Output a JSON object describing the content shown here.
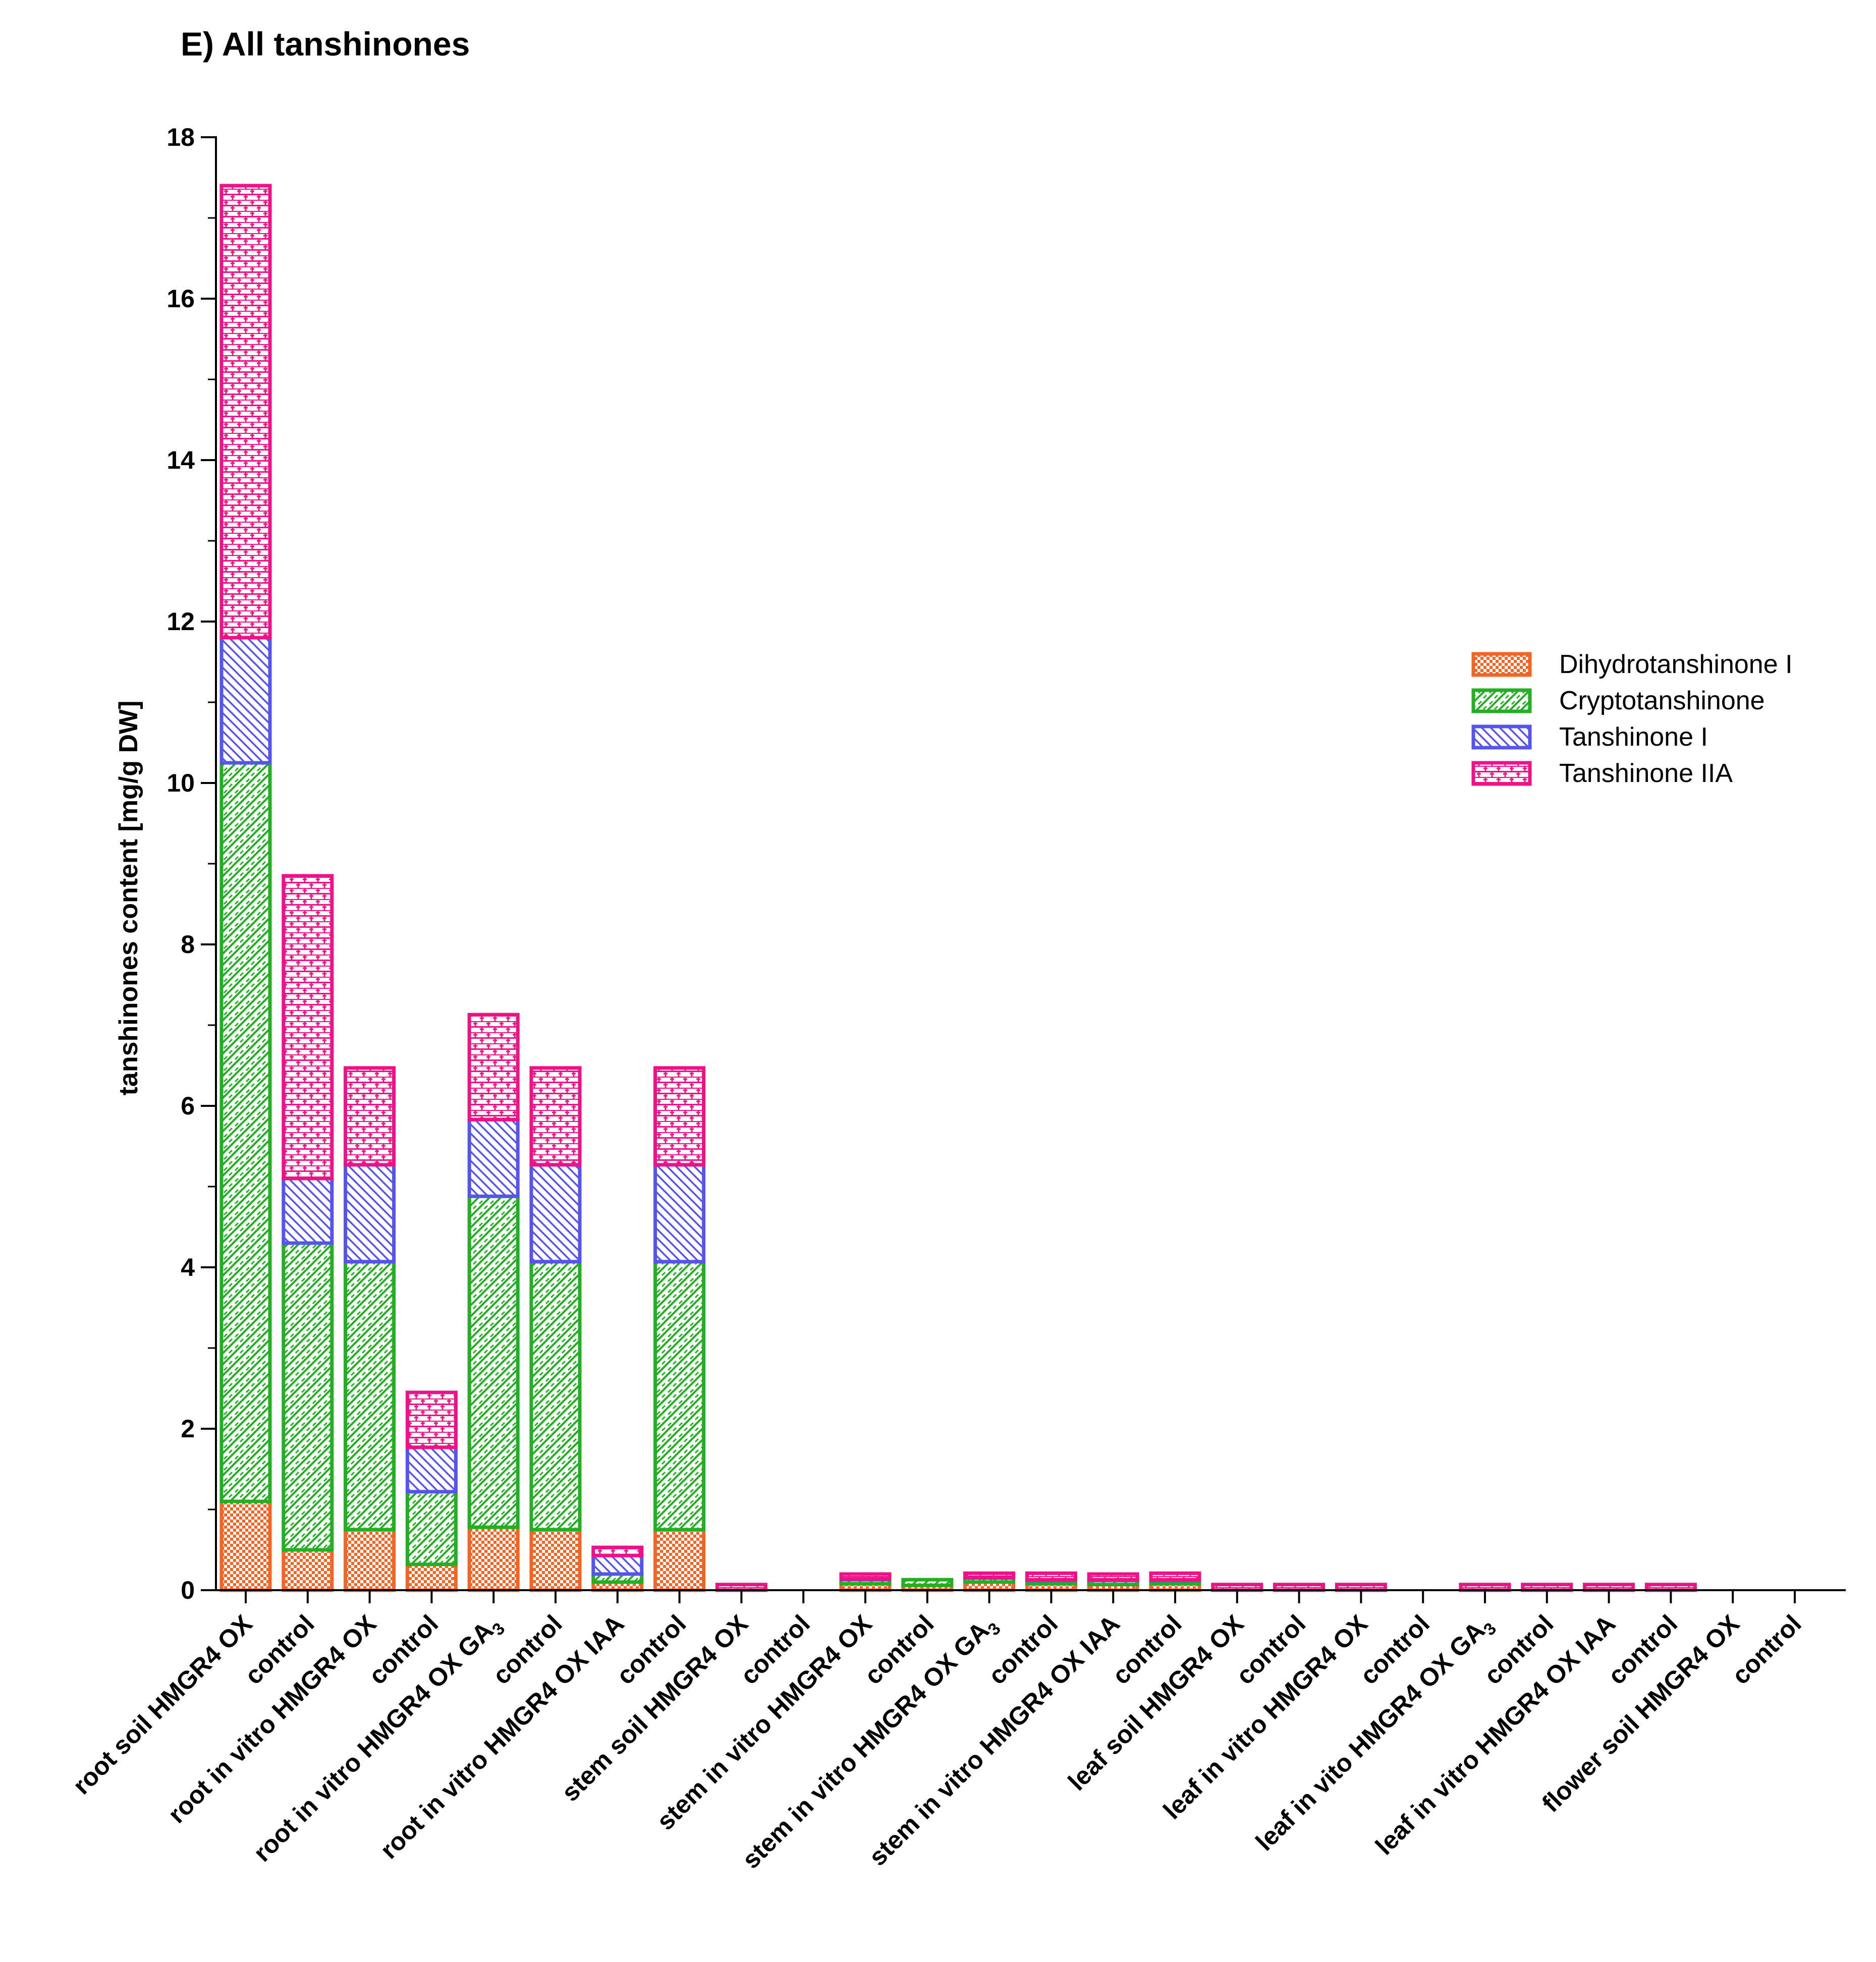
{
  "chart_data": {
    "type": "bar",
    "stacked": true,
    "title": "E) All tanshinones",
    "xlabel": "",
    "ylabel": "tanshinones content [mg/g DW]",
    "ylim": [
      0,
      18
    ],
    "yticks": [
      "0",
      "2",
      "4",
      "6",
      "8",
      "10",
      "12",
      "14",
      "16",
      "18"
    ],
    "grid": false,
    "legend_position": "right",
    "categories": [
      {
        "main": "root soil HMGR4 OX",
        "sub": ""
      },
      {
        "main": "control",
        "sub": ""
      },
      {
        "main": "root in vitro HMGR4 OX",
        "sub": ""
      },
      {
        "main": "control",
        "sub": ""
      },
      {
        "main": "root in vitro HMGR4 OX GA",
        "sub": "3"
      },
      {
        "main": "control",
        "sub": ""
      },
      {
        "main": "root in vitro HMGR4 OX IAA",
        "sub": ""
      },
      {
        "main": "control",
        "sub": ""
      },
      {
        "main": "stem soil HMGR4 OX",
        "sub": ""
      },
      {
        "main": "control",
        "sub": ""
      },
      {
        "main": "stem in vitro HMGR4 OX",
        "sub": ""
      },
      {
        "main": "control",
        "sub": ""
      },
      {
        "main": "stem in vitro HMGR4 OX GA",
        "sub": "3"
      },
      {
        "main": "control",
        "sub": ""
      },
      {
        "main": "stem in vitro HMGR4 OX IAA",
        "sub": ""
      },
      {
        "main": "control",
        "sub": ""
      },
      {
        "main": "leaf soil HMGR4 OX",
        "sub": ""
      },
      {
        "main": "control",
        "sub": ""
      },
      {
        "main": "leaf in vitro HMGR4 OX",
        "sub": ""
      },
      {
        "main": "control",
        "sub": ""
      },
      {
        "main": "leaf in vito HMGR4 OX GA",
        "sub": "3"
      },
      {
        "main": "control",
        "sub": ""
      },
      {
        "main": "leaf in vitro HMGR4 OX IAA",
        "sub": ""
      },
      {
        "main": "control",
        "sub": ""
      },
      {
        "main": "flower soil HMGR4 OX",
        "sub": ""
      },
      {
        "main": "control",
        "sub": ""
      }
    ],
    "series": [
      {
        "name": "Dihydrotanshinone I",
        "color": "#f26522",
        "pattern": "checker",
        "values": [
          1.1,
          0.5,
          0.75,
          0.32,
          0.78,
          0.75,
          0.1,
          0.75,
          0.0,
          0.0,
          0.08,
          0.06,
          0.1,
          0.08,
          0.07,
          0.08,
          0.0,
          0.0,
          0.0,
          0.0,
          0.0,
          0.0,
          0.0,
          0.0,
          0.0,
          0.0
        ]
      },
      {
        "name": "Cryptotanshinone",
        "color": "#22b022",
        "pattern": "zigzag",
        "values": [
          9.15,
          3.8,
          3.32,
          0.9,
          4.1,
          3.32,
          0.1,
          3.32,
          0.0,
          0.0,
          0.05,
          0.07,
          0.05,
          0.04,
          0.05,
          0.04,
          0.0,
          0.0,
          0.0,
          0.0,
          0.0,
          0.0,
          0.0,
          0.0,
          0.0,
          0.0
        ]
      },
      {
        "name": "Tanshinone I",
        "color": "#5555ee",
        "pattern": "diagonal",
        "values": [
          1.55,
          0.8,
          1.2,
          0.55,
          0.95,
          1.2,
          0.23,
          1.2,
          0.0,
          0.0,
          0.01,
          0.0,
          0.01,
          0.01,
          0.01,
          0.01,
          0.0,
          0.0,
          0.0,
          0.0,
          0.0,
          0.0,
          0.0,
          0.0,
          0.0,
          0.0
        ]
      },
      {
        "name": "Tanshinone IIA",
        "color": "#ee1188",
        "pattern": "brick",
        "values": [
          5.6,
          3.75,
          1.2,
          0.68,
          1.3,
          1.2,
          0.1,
          1.2,
          0.07,
          0.0,
          0.06,
          0.0,
          0.05,
          0.08,
          0.07,
          0.08,
          0.07,
          0.07,
          0.07,
          0.0,
          0.07,
          0.07,
          0.07,
          0.07,
          0.0,
          0.0
        ]
      }
    ]
  }
}
